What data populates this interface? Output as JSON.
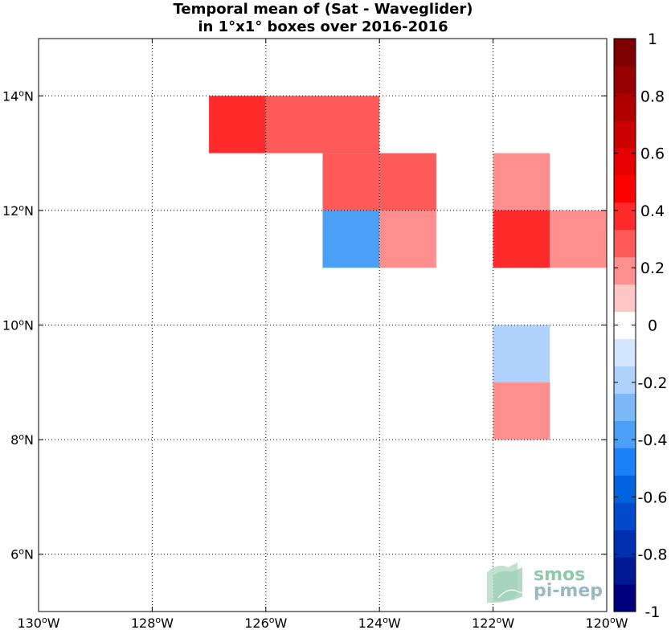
{
  "chart_data": {
    "type": "heatmap",
    "title": [
      "Temporal mean of (Sat - Waveglider)",
      "in 1°x1° boxes over 2016-2016"
    ],
    "x_ticks": [
      {
        "value": -130,
        "deg": "130",
        "hemi": "W"
      },
      {
        "value": -128,
        "deg": "128",
        "hemi": "W"
      },
      {
        "value": -126,
        "deg": "126",
        "hemi": "W"
      },
      {
        "value": -124,
        "deg": "124",
        "hemi": "W"
      },
      {
        "value": -122,
        "deg": "122",
        "hemi": "W"
      },
      {
        "value": -120,
        "deg": "120",
        "hemi": "W"
      }
    ],
    "y_ticks": [
      {
        "value": 6,
        "deg": "6",
        "hemi": "N"
      },
      {
        "value": 8,
        "deg": "8",
        "hemi": "N"
      },
      {
        "value": 10,
        "deg": "10",
        "hemi": "N"
      },
      {
        "value": 12,
        "deg": "12",
        "hemi": "N"
      },
      {
        "value": 14,
        "deg": "14",
        "hemi": "N"
      }
    ],
    "xlim": [
      -130,
      -120
    ],
    "ylim": [
      5,
      15
    ],
    "grid": true,
    "cells": [
      {
        "lon": -127,
        "lat": 13,
        "value": 0.35
      },
      {
        "lon": -126,
        "lat": 13,
        "value": 0.25
      },
      {
        "lon": -125,
        "lat": 13,
        "value": 0.25
      },
      {
        "lon": -125,
        "lat": 12,
        "value": 0.25
      },
      {
        "lon": -124,
        "lat": 12,
        "value": 0.25
      },
      {
        "lon": -122,
        "lat": 12,
        "value": 0.15
      },
      {
        "lon": -125,
        "lat": 11,
        "value": -0.35
      },
      {
        "lon": -124,
        "lat": 11,
        "value": 0.15
      },
      {
        "lon": -122,
        "lat": 11,
        "value": 0.35
      },
      {
        "lon": -121,
        "lat": 11,
        "value": 0.15
      },
      {
        "lon": -122,
        "lat": 9,
        "value": -0.15
      },
      {
        "lon": -122,
        "lat": 8,
        "value": 0.15
      }
    ],
    "colorbar": {
      "min": -1,
      "max": 1,
      "tick_labels": [
        "1",
        "0.8",
        "0.6",
        "0.4",
        "0.2",
        "0",
        "-0.2",
        "-0.4",
        "-0.6",
        "-0.8",
        "-1"
      ],
      "colors": [
        "#00007f",
        "#001893",
        "#0030b0",
        "#004acb",
        "#0064e1",
        "#1a80f7",
        "#4b9ff5",
        "#7db8f8",
        "#aed2fb",
        "#d2e6fd",
        "#ffffff",
        "#ffc6c6",
        "#ff8e8e",
        "#ff5a5a",
        "#ff2a2a",
        "#ff0000",
        "#e60000",
        "#cc0000",
        "#b00000",
        "#960000",
        "#7f0000"
      ]
    },
    "logo": {
      "line1": "smos",
      "line2": "pi-mep"
    }
  }
}
